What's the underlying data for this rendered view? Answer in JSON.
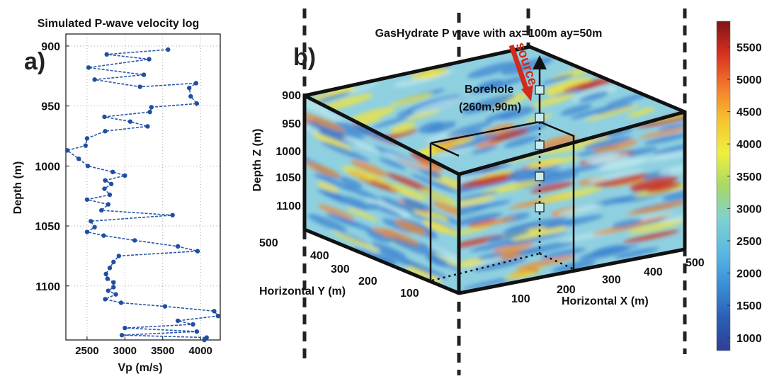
{
  "panel_a": {
    "letter": "a)",
    "title": "Simulated P-wave velocity log",
    "xlabel": "Vp (m/s)",
    "ylabel": "Depth (m)"
  },
  "panel_b": {
    "letter": "b)",
    "title": "GasHydrate P wave with ax=100m ay=50m",
    "source_label": "source",
    "borehole_label": "Borehole",
    "borehole_coords": "(260m,90m)",
    "z_label": "Depth Z (m)",
    "y_label": "Horizontal Y (m)",
    "x_label": "Horizontal X (m)",
    "z_ticks": [
      "900",
      "950",
      "1000",
      "1050",
      "1100"
    ],
    "y_ticks": [
      "500",
      "400",
      "300",
      "200",
      "100"
    ],
    "x_ticks": [
      "100",
      "200",
      "300",
      "400",
      "500"
    ],
    "receivers": 5,
    "volume_colors": {
      "background": "#8fd0e0",
      "blue": "#3f86d1",
      "yellow": "#f2e33c",
      "orange": "#ef8a2e",
      "red": "#cc3322"
    }
  },
  "colorbar": {
    "ticks": [
      "5500",
      "5000",
      "4500",
      "4000",
      "3500",
      "3000",
      "2500",
      "2000",
      "1500",
      "1000"
    ],
    "stops": [
      "#7f1418",
      "#d8311f",
      "#f47a2b",
      "#f6c42f",
      "#eef03c",
      "#a8d867",
      "#7fd1cf",
      "#5ab9e3",
      "#3a8fd6",
      "#2a5fb6",
      "#2f3f95"
    ]
  },
  "chart_data": [
    {
      "type": "line",
      "title": "Simulated P-wave velocity log",
      "xlabel": "Vp (m/s)",
      "ylabel": "Depth (m)",
      "xlim": [
        2220,
        4260
      ],
      "ylim": [
        1145,
        890
      ],
      "xticks": [
        2500,
        3000,
        3500,
        4000
      ],
      "yticks": [
        900,
        950,
        1000,
        1050,
        1100
      ],
      "grid": true,
      "series": [
        {
          "x": [
            3570,
            2760,
            3320,
            2520,
            3250,
            2600,
            3200,
            3940,
            3850,
            3870,
            3950,
            3350,
            3330,
            2730,
            3070,
            3300,
            2740,
            2500,
            2480,
            2240,
            2390,
            2510,
            2840,
            3000,
            2740,
            2820,
            2730,
            2800,
            2500,
            2780,
            2690,
            3630,
            2550,
            2600,
            2500,
            2720,
            3130,
            3700,
            3960,
            2920,
            2850,
            2800,
            2750,
            2770,
            2850,
            2850,
            2780,
            2880,
            2740,
            2950,
            3530,
            4180,
            4230,
            3700,
            3900,
            3000,
            3950,
            2960,
            4080,
            4050
          ],
          "y": [
            903,
            907,
            911,
            918,
            924,
            928,
            934,
            931,
            935,
            942,
            948,
            951,
            955,
            959,
            963,
            967,
            971,
            977,
            983,
            987,
            994,
            1000,
            1005,
            1008,
            1012,
            1015,
            1019,
            1024,
            1028,
            1032,
            1037,
            1041,
            1046,
            1051,
            1055,
            1058,
            1062,
            1067,
            1071,
            1075,
            1080,
            1085,
            1090,
            1094,
            1097,
            1101,
            1104,
            1107,
            1111,
            1114,
            1117,
            1121,
            1125,
            1129,
            1132,
            1135,
            1138,
            1141,
            1143,
            1145
          ]
        }
      ]
    },
    {
      "type": "heatmap",
      "title": "GasHydrate P wave with ax=100m ay=50m",
      "xlabel": "Horizontal X (m)",
      "ylabel": "Horizontal Y (m)",
      "zlabel": "Depth Z (m)",
      "xticks": [
        100,
        200,
        300,
        400,
        500
      ],
      "yticks": [
        100,
        200,
        300,
        400,
        500
      ],
      "zticks": [
        900,
        950,
        1000,
        1050,
        1100
      ],
      "colorbar_range": [
        800,
        5900
      ],
      "colorbar_ticks": [
        1000,
        1500,
        2000,
        2500,
        3000,
        3500,
        4000,
        4500,
        5000,
        5500
      ]
    }
  ]
}
